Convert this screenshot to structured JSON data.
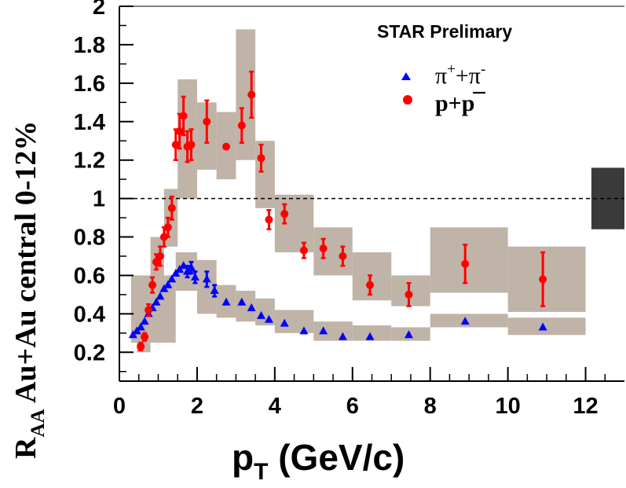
{
  "chart_data": {
    "type": "scatter",
    "title": "",
    "annotation": "STAR Prelimary",
    "xlabel": {
      "main": "p",
      "sub": "T",
      "rest": " (GeV/c)"
    },
    "ylabel": {
      "main": "R",
      "sub": "AA",
      "rest": " Au+Au central 0-12%"
    },
    "xlim": [
      0,
      13
    ],
    "ylim": [
      0.05,
      2.0
    ],
    "xticks": [
      0,
      2,
      4,
      6,
      8,
      10,
      12
    ],
    "yticks": [
      0.2,
      0.4,
      0.6,
      0.8,
      1,
      1.2,
      1.4,
      1.6,
      1.8,
      2
    ],
    "reference_line": 1,
    "normalization_box": {
      "x": [
        12.15,
        13.0
      ],
      "y": [
        0.84,
        1.16
      ]
    },
    "series": [
      {
        "name": "π⁺+π⁻",
        "legend": {
          "base": "π",
          "sup1": "+",
          "mid": "+π",
          "sup2": "-"
        },
        "marker": "triangle",
        "color": "#0000ff",
        "x": [
          0.35,
          0.45,
          0.55,
          0.65,
          0.75,
          0.85,
          0.95,
          1.05,
          1.15,
          1.25,
          1.35,
          1.45,
          1.55,
          1.65,
          1.75,
          1.85,
          1.95,
          2.25,
          2.45,
          2.75,
          3.15,
          3.4,
          3.65,
          3.85,
          4.25,
          4.75,
          5.25,
          5.75,
          6.45,
          7.45,
          8.9,
          10.9
        ],
        "y": [
          0.29,
          0.31,
          0.33,
          0.36,
          0.4,
          0.43,
          0.46,
          0.49,
          0.53,
          0.55,
          0.58,
          0.61,
          0.63,
          0.65,
          0.62,
          0.64,
          0.59,
          0.58,
          0.52,
          0.46,
          0.46,
          0.43,
          0.39,
          0.37,
          0.35,
          0.31,
          0.31,
          0.28,
          0.28,
          0.29,
          0.36,
          0.33
        ],
        "err": [
          0,
          0,
          0,
          0,
          0,
          0,
          0,
          0,
          0,
          0,
          0,
          0,
          0,
          0,
          0.03,
          0.03,
          0.03,
          0.04,
          0.03,
          0,
          0,
          0,
          0,
          0,
          0,
          0,
          0,
          0,
          0,
          0,
          0,
          0
        ],
        "sys_boxes": [
          {
            "x0": 0.3,
            "x1": 1.45,
            "y0": 0.25,
            "y1": 0.6
          },
          {
            "x0": 1.45,
            "x1": 2.0,
            "y0": 0.52,
            "y1": 0.72
          },
          {
            "x0": 2.0,
            "x1": 2.5,
            "y0": 0.4,
            "y1": 0.68
          },
          {
            "x0": 2.5,
            "x1": 3.0,
            "y0": 0.38,
            "y1": 0.55
          },
          {
            "x0": 3.0,
            "x1": 3.5,
            "y0": 0.36,
            "y1": 0.52
          },
          {
            "x0": 3.5,
            "x1": 4.0,
            "y0": 0.34,
            "y1": 0.48
          },
          {
            "x0": 4.0,
            "x1": 5.0,
            "y0": 0.3,
            "y1": 0.42
          },
          {
            "x0": 5.0,
            "x1": 6.0,
            "y0": 0.26,
            "y1": 0.36
          },
          {
            "x0": 6.0,
            "x1": 7.0,
            "y0": 0.26,
            "y1": 0.34
          },
          {
            "x0": 7.0,
            "x1": 8.0,
            "y0": 0.26,
            "y1": 0.33
          },
          {
            "x0": 8.0,
            "x1": 10.0,
            "y0": 0.33,
            "y1": 0.4
          },
          {
            "x0": 10.0,
            "x1": 12.0,
            "y0": 0.29,
            "y1": 0.38
          }
        ]
      },
      {
        "name": "p+p̄",
        "legend": {
          "base": "p+p"
        },
        "marker": "circle",
        "color": "#ff0000",
        "x": [
          0.55,
          0.65,
          0.75,
          0.85,
          0.95,
          1.05,
          1.15,
          1.25,
          1.35,
          1.45,
          1.55,
          1.65,
          1.75,
          1.85,
          2.25,
          2.75,
          3.15,
          3.4,
          3.65,
          3.85,
          4.25,
          4.75,
          5.25,
          5.75,
          6.45,
          7.45,
          8.9,
          10.9
        ],
        "y": [
          0.23,
          0.28,
          0.42,
          0.55,
          0.67,
          0.7,
          0.8,
          0.85,
          0.95,
          1.28,
          1.35,
          1.43,
          1.27,
          1.28,
          1.4,
          1.27,
          1.38,
          1.54,
          1.21,
          0.89,
          0.92,
          0.73,
          0.74,
          0.7,
          0.55,
          0.5,
          0.66,
          0.58
        ],
        "err": [
          0.02,
          0.02,
          0.03,
          0.04,
          0.04,
          0.05,
          0.05,
          0.05,
          0.06,
          0.08,
          0.09,
          0.1,
          0.08,
          0.08,
          0.11,
          0,
          0.09,
          0.12,
          0.07,
          0.05,
          0.05,
          0.04,
          0.05,
          0.05,
          0.05,
          0.06,
          0.1,
          0.14
        ],
        "sys_boxes": [
          {
            "x0": 0.45,
            "x1": 0.8,
            "y0": 0.2,
            "y1": 0.45
          },
          {
            "x0": 0.8,
            "x1": 1.15,
            "y0": 0.45,
            "y1": 0.8
          },
          {
            "x0": 1.15,
            "x1": 1.5,
            "y0": 0.75,
            "y1": 1.05
          },
          {
            "x0": 1.5,
            "x1": 2.0,
            "y0": 1.0,
            "y1": 1.62
          },
          {
            "x0": 2.0,
            "x1": 2.5,
            "y0": 1.15,
            "y1": 1.5
          },
          {
            "x0": 2.5,
            "x1": 3.0,
            "y0": 1.1,
            "y1": 1.45
          },
          {
            "x0": 3.0,
            "x1": 3.5,
            "y0": 1.2,
            "y1": 1.88
          },
          {
            "x0": 3.5,
            "x1": 4.0,
            "y0": 0.95,
            "y1": 1.3
          },
          {
            "x0": 4.0,
            "x1": 5.0,
            "y0": 0.72,
            "y1": 1.02
          },
          {
            "x0": 5.0,
            "x1": 6.0,
            "y0": 0.6,
            "y1": 0.85
          },
          {
            "x0": 6.0,
            "x1": 7.0,
            "y0": 0.47,
            "y1": 0.72
          },
          {
            "x0": 7.0,
            "x1": 8.0,
            "y0": 0.44,
            "y1": 0.6
          },
          {
            "x0": 8.0,
            "x1": 10.0,
            "y0": 0.51,
            "y1": 0.85
          },
          {
            "x0": 10.0,
            "x1": 12.0,
            "y0": 0.41,
            "y1": 0.75
          }
        ]
      }
    ],
    "colors": {
      "sys_fill": "#c0b3a7",
      "norm_box": "#3a3a3a",
      "frame": "#000000"
    }
  }
}
